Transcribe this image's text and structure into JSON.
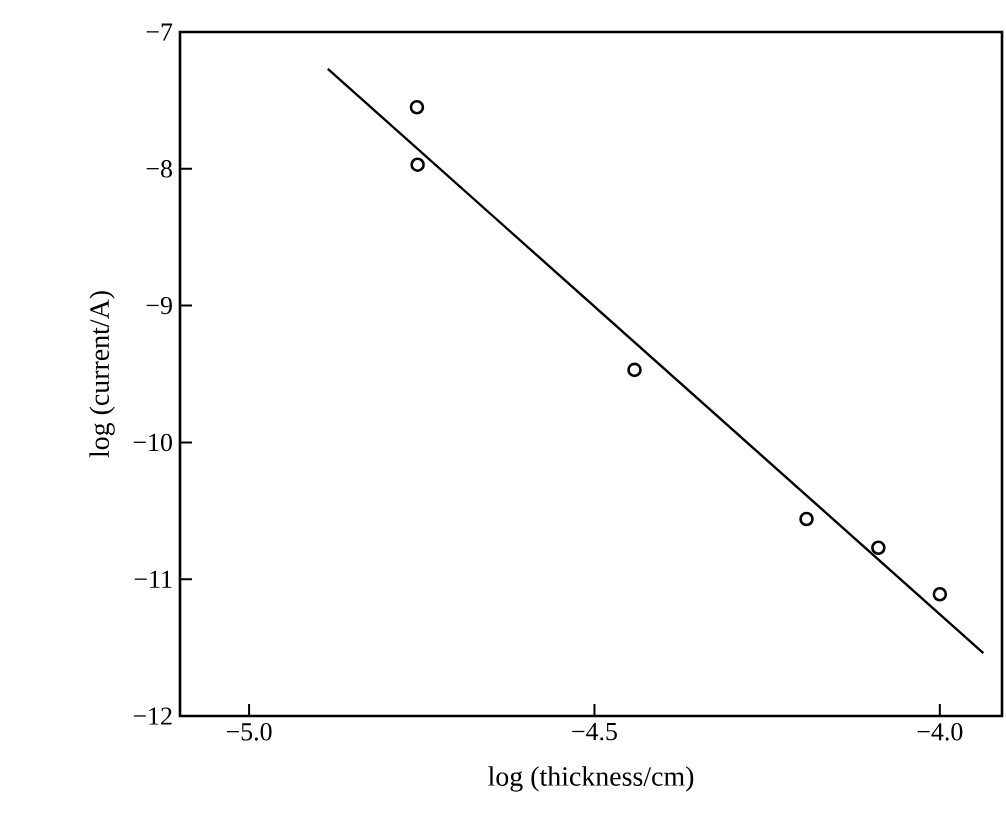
{
  "chart_data": {
    "type": "scatter",
    "xlabel": "log (thickness/cm)",
    "ylabel": "log (current/A)",
    "xlim": [
      -5.1,
      -3.91
    ],
    "ylim": [
      -12,
      -7
    ],
    "xticks": [
      {
        "value": -5,
        "label": "−5.0"
      },
      {
        "value": -4.5,
        "label": "−4.5"
      },
      {
        "value": -4,
        "label": "−4.0"
      }
    ],
    "yticks": [
      {
        "value": -12,
        "label": "−12"
      },
      {
        "value": -11,
        "label": "−11"
      },
      {
        "value": -10,
        "label": "−10"
      },
      {
        "value": -9,
        "label": "−9"
      },
      {
        "value": -8,
        "label": "−8"
      },
      {
        "value": -7,
        "label": "−7"
      }
    ],
    "grid": false,
    "series": [
      {
        "color": "#000000",
        "marker": "circle",
        "x": [
          -4.757,
          -4.756,
          -4.442,
          -4.193,
          -4.089,
          -4.0
        ],
        "values": [
          -7.55,
          -7.97,
          -9.47,
          -10.56,
          -10.77,
          -11.11
        ]
      },
      {
        "type": "line",
        "color": "#000000",
        "marker": "none",
        "x": [
          -4.886,
          -3.937
        ],
        "values": [
          -7.27,
          -11.54
        ]
      }
    ]
  }
}
